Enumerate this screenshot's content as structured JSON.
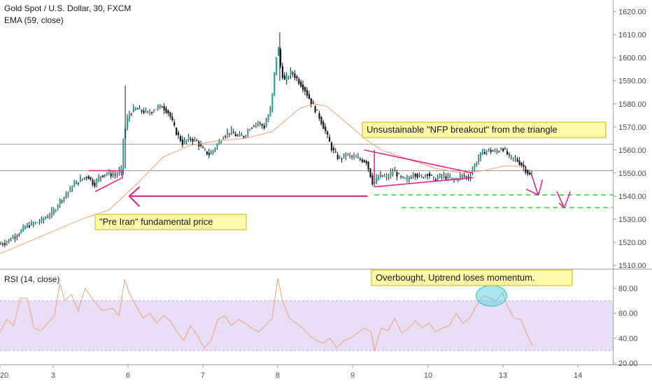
{
  "header": {
    "title": "Gold Spot / U.S. Dollar, 30, FXCM",
    "ema_label": "EMA (59, close)",
    "rsi_label": "RSI (14, close)"
  },
  "colors": {
    "up": "#26a69a",
    "down": "#131722",
    "ema": "#f0a070",
    "rsi": "#f0a070",
    "rsi_band": "#e9ddf7",
    "magenta": "#e6188c",
    "green": "#22dd22",
    "note_bg": "#fff9a8",
    "ellipse": "#5fd3e0"
  },
  "chart_data": [
    {
      "type": "candlestick",
      "title": "Gold Spot / U.S. Dollar, 30, FXCM",
      "ylim": [
        1510,
        1622
      ],
      "yticks": [
        1510,
        1520,
        1530,
        1540,
        1550,
        1560,
        1570,
        1580,
        1590,
        1600,
        1610,
        1620
      ],
      "ytick_labels": [
        "1510.00",
        "1520.00",
        "1530.00",
        "1540.00",
        "1550.00",
        "1560.00",
        "1570.00",
        "1580.00",
        "1590.00",
        "1600.00",
        "1610.00",
        "1620.00"
      ],
      "xlim": [
        0,
        890
      ],
      "xticks": [
        0,
        78,
        188,
        298,
        408,
        518,
        629,
        739,
        849
      ],
      "xtick_labels": [
        "20",
        "3",
        "6",
        "7",
        "8",
        "9",
        "10",
        "13",
        "14"
      ],
      "price_path": [
        [
          0,
          1519
        ],
        [
          10,
          1520
        ],
        [
          20,
          1522
        ],
        [
          30,
          1524
        ],
        [
          40,
          1527
        ],
        [
          50,
          1528
        ],
        [
          60,
          1529
        ],
        [
          70,
          1531
        ],
        [
          80,
          1533
        ],
        [
          90,
          1538
        ],
        [
          100,
          1541
        ],
        [
          110,
          1545
        ],
        [
          120,
          1547
        ],
        [
          130,
          1549
        ],
        [
          140,
          1545
        ],
        [
          150,
          1549
        ],
        [
          160,
          1550
        ],
        [
          170,
          1549
        ],
        [
          180,
          1551
        ],
        [
          183,
          1565
        ],
        [
          190,
          1575
        ],
        [
          200,
          1578
        ],
        [
          210,
          1577
        ],
        [
          220,
          1576
        ],
        [
          230,
          1578
        ],
        [
          240,
          1579
        ],
        [
          250,
          1576
        ],
        [
          260,
          1568
        ],
        [
          270,
          1563
        ],
        [
          280,
          1565
        ],
        [
          290,
          1564
        ],
        [
          300,
          1560
        ],
        [
          310,
          1558
        ],
        [
          320,
          1562
        ],
        [
          330,
          1566
        ],
        [
          340,
          1568
        ],
        [
          350,
          1566
        ],
        [
          360,
          1566
        ],
        [
          370,
          1570
        ],
        [
          380,
          1572
        ],
        [
          390,
          1570
        ],
        [
          400,
          1578
        ],
        [
          405,
          1593
        ],
        [
          410,
          1606
        ],
        [
          415,
          1594
        ],
        [
          420,
          1590
        ],
        [
          430,
          1594
        ],
        [
          440,
          1590
        ],
        [
          450,
          1586
        ],
        [
          460,
          1580
        ],
        [
          470,
          1575
        ],
        [
          480,
          1568
        ],
        [
          490,
          1560
        ],
        [
          500,
          1556
        ],
        [
          510,
          1558
        ],
        [
          520,
          1557
        ],
        [
          530,
          1556
        ],
        [
          540,
          1555
        ],
        [
          550,
          1545
        ],
        [
          560,
          1549
        ],
        [
          570,
          1548
        ],
        [
          580,
          1551
        ],
        [
          590,
          1548
        ],
        [
          600,
          1547
        ],
        [
          610,
          1550
        ],
        [
          620,
          1548
        ],
        [
          630,
          1550
        ],
        [
          640,
          1547
        ],
        [
          650,
          1549
        ],
        [
          660,
          1548
        ],
        [
          670,
          1547
        ],
        [
          680,
          1549
        ],
        [
          690,
          1548
        ],
        [
          700,
          1554
        ],
        [
          710,
          1559
        ],
        [
          720,
          1560
        ],
        [
          730,
          1559
        ],
        [
          740,
          1561
        ],
        [
          750,
          1557
        ],
        [
          760,
          1556
        ],
        [
          770,
          1553
        ],
        [
          780,
          1549
        ]
      ],
      "ema_path": [
        [
          0,
          1515
        ],
        [
          40,
          1520
        ],
        [
          80,
          1525
        ],
        [
          120,
          1530
        ],
        [
          160,
          1534
        ],
        [
          200,
          1545
        ],
        [
          240,
          1557
        ],
        [
          280,
          1562
        ],
        [
          320,
          1564
        ],
        [
          360,
          1565
        ],
        [
          400,
          1568
        ],
        [
          420,
          1573
        ],
        [
          440,
          1578
        ],
        [
          460,
          1580
        ],
        [
          480,
          1579
        ],
        [
          500,
          1574
        ],
        [
          520,
          1569
        ],
        [
          540,
          1564
        ],
        [
          560,
          1560
        ],
        [
          600,
          1556
        ],
        [
          640,
          1552
        ],
        [
          680,
          1550
        ],
        [
          710,
          1551
        ],
        [
          740,
          1553
        ],
        [
          760,
          1553
        ],
        [
          780,
          1551
        ]
      ],
      "hlines": [
        1562.5,
        1551
      ],
      "annotations": {
        "nfp_note": "Unsustainable \"NFP breakout\" from the triangle",
        "iran_note": "\"Pre Iran\" fundamental price"
      }
    },
    {
      "type": "line",
      "title": "RSI (14, close)",
      "ylim": [
        20,
        90
      ],
      "yticks": [
        20,
        40,
        60,
        80
      ],
      "ytick_labels": [
        "20.00",
        "40.00",
        "60.00",
        "80.00"
      ],
      "band": [
        30,
        70
      ],
      "rsi_path": [
        [
          0,
          45
        ],
        [
          10,
          55
        ],
        [
          20,
          50
        ],
        [
          30,
          72
        ],
        [
          40,
          72
        ],
        [
          50,
          48
        ],
        [
          60,
          46
        ],
        [
          70,
          52
        ],
        [
          80,
          58
        ],
        [
          88,
          84
        ],
        [
          95,
          70
        ],
        [
          105,
          75
        ],
        [
          115,
          62
        ],
        [
          125,
          80
        ],
        [
          135,
          72
        ],
        [
          150,
          62
        ],
        [
          165,
          64
        ],
        [
          175,
          58
        ],
        [
          183,
          87
        ],
        [
          190,
          76
        ],
        [
          200,
          66
        ],
        [
          210,
          56
        ],
        [
          220,
          60
        ],
        [
          230,
          52
        ],
        [
          240,
          58
        ],
        [
          250,
          54
        ],
        [
          260,
          45
        ],
        [
          270,
          38
        ],
        [
          280,
          50
        ],
        [
          290,
          42
        ],
        [
          300,
          32
        ],
        [
          310,
          38
        ],
        [
          320,
          55
        ],
        [
          330,
          58
        ],
        [
          340,
          50
        ],
        [
          350,
          55
        ],
        [
          360,
          52
        ],
        [
          370,
          48
        ],
        [
          380,
          45
        ],
        [
          390,
          50
        ],
        [
          400,
          56
        ],
        [
          408,
          88
        ],
        [
          415,
          70
        ],
        [
          425,
          56
        ],
        [
          435,
          52
        ],
        [
          445,
          48
        ],
        [
          455,
          42
        ],
        [
          465,
          38
        ],
        [
          475,
          36
        ],
        [
          485,
          40
        ],
        [
          495,
          32
        ],
        [
          505,
          38
        ],
        [
          515,
          40
        ],
        [
          525,
          44
        ],
        [
          535,
          48
        ],
        [
          545,
          45
        ],
        [
          550,
          30
        ],
        [
          560,
          48
        ],
        [
          570,
          46
        ],
        [
          580,
          56
        ],
        [
          590,
          44
        ],
        [
          600,
          48
        ],
        [
          610,
          54
        ],
        [
          620,
          48
        ],
        [
          630,
          52
        ],
        [
          640,
          45
        ],
        [
          650,
          48
        ],
        [
          660,
          50
        ],
        [
          670,
          60
        ],
        [
          680,
          52
        ],
        [
          690,
          56
        ],
        [
          700,
          66
        ],
        [
          710,
          74
        ],
        [
          720,
          72
        ],
        [
          730,
          70
        ],
        [
          738,
          77
        ],
        [
          745,
          66
        ],
        [
          755,
          56
        ],
        [
          765,
          55
        ],
        [
          775,
          42
        ],
        [
          782,
          34
        ]
      ],
      "annotations": {
        "rsi_note": "Overbought, Uptrend loses momentum."
      }
    }
  ]
}
